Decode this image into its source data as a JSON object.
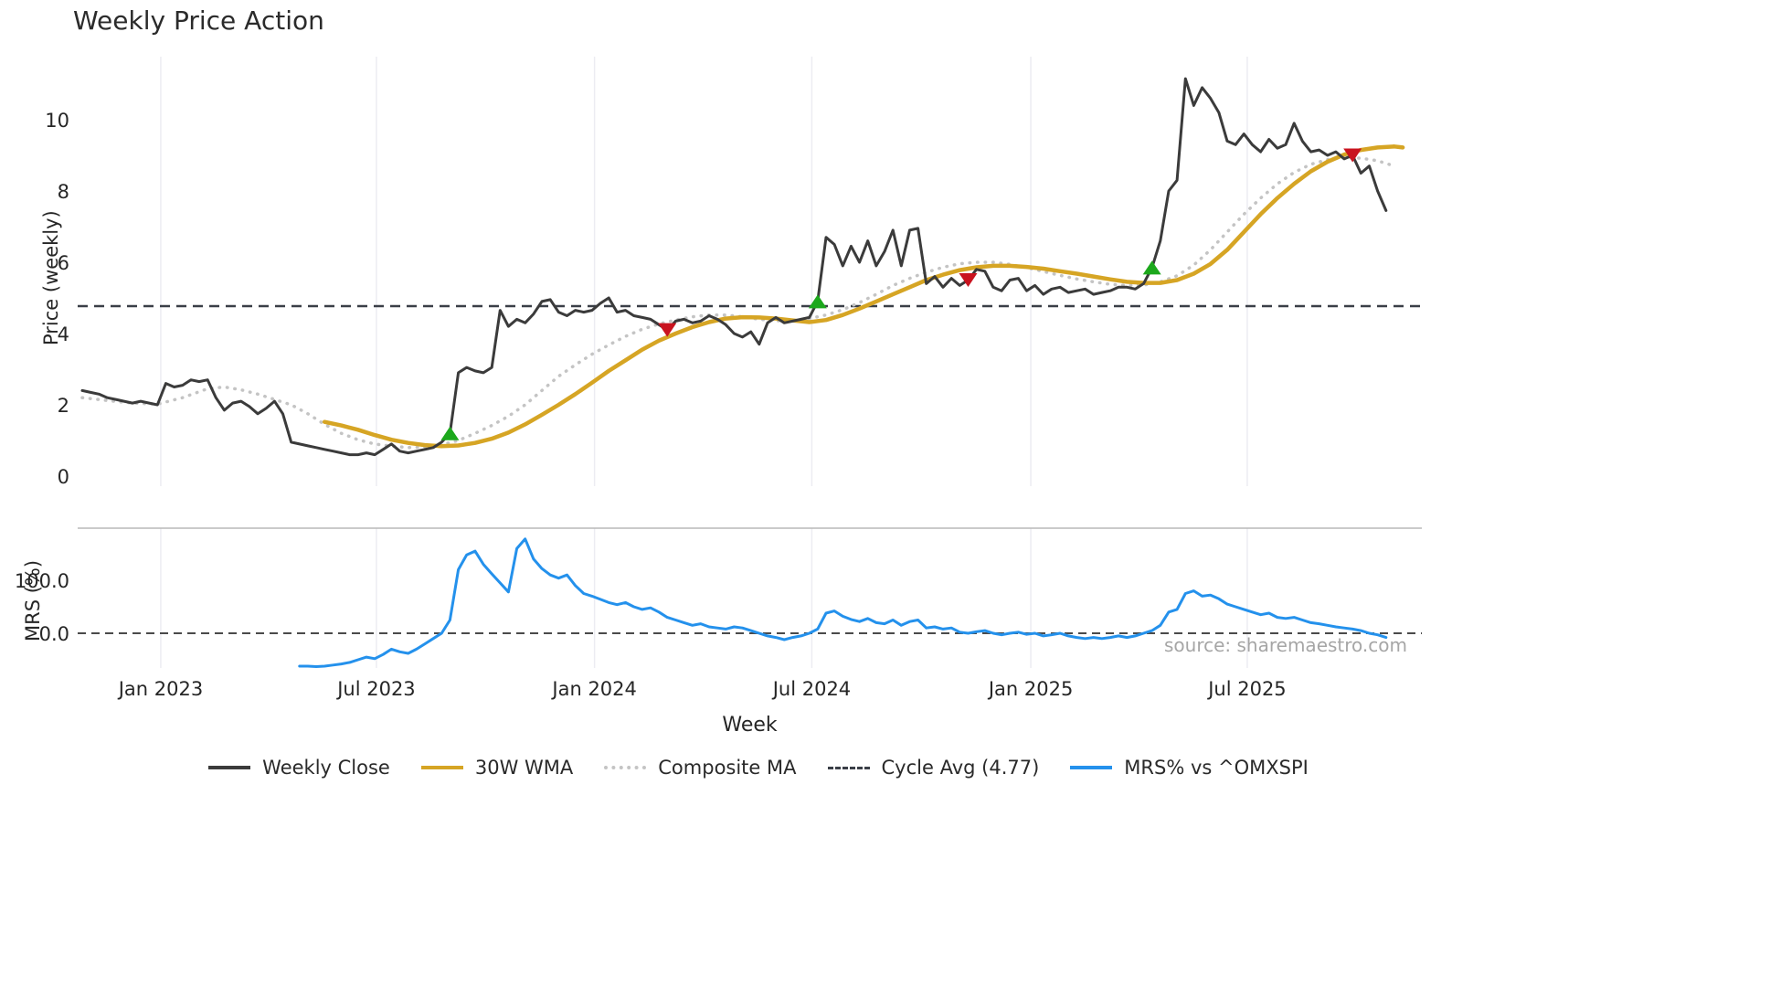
{
  "page": {
    "title": "Weekly Price Action",
    "source_note": "source: sharemaestro.com"
  },
  "chart_data": {
    "type": "line",
    "title": "Weekly Price Action",
    "xlabel": "Week",
    "x_domain_weeks": [
      0,
      160
    ],
    "grid": "vertical-light",
    "legend_position": "bottom-center",
    "price_panel": {
      "ylabel": "Price (weekly)",
      "ylim": [
        -0.3,
        11.8
      ]
    },
    "mrs_panel": {
      "ylabel": "MRS (%)",
      "ylim": [
        -75,
        200
      ]
    },
    "style": {
      "grid_color": "#ececf2",
      "tick_color": "#262626",
      "spine_color": "#b8b8b8",
      "background": "#ffffff"
    },
    "xticks": [
      {
        "week": 9.4,
        "label": "Jan 2023"
      },
      {
        "week": 35.2,
        "label": "Jul 2023"
      },
      {
        "week": 61.3,
        "label": "Jan 2024"
      },
      {
        "week": 87.3,
        "label": "Jul 2024"
      },
      {
        "week": 113.5,
        "label": "Jan 2025"
      },
      {
        "week": 139.4,
        "label": "Jul 2025"
      }
    ],
    "price_yticks": [
      {
        "value": 0,
        "label": "0"
      },
      {
        "value": 2,
        "label": "2"
      },
      {
        "value": 4,
        "label": "4"
      },
      {
        "value": 6,
        "label": "6"
      },
      {
        "value": 8,
        "label": "8"
      },
      {
        "value": 10,
        "label": "10"
      }
    ],
    "mrs_yticks": [
      {
        "value": 0,
        "label": "0.0"
      },
      {
        "value": 100,
        "label": "100.0"
      }
    ],
    "price_hline": {
      "label": "Cycle Avg (4.77)",
      "value": 4.77,
      "color": "#3a3f47",
      "dash": "11 7",
      "width": 2.5
    },
    "mrs_hline": {
      "label": "MRS zero line",
      "value": 0,
      "color": "#4a4a4a",
      "dash": "9 6",
      "width": 2
    },
    "series": [
      {
        "id": "weekly-close",
        "name": "Weekly Close",
        "panel": "price",
        "color": "#3b3b3b",
        "width": 3,
        "dash": "",
        "x0": 0,
        "step": 1,
        "values": [
          2.4,
          2.35,
          2.3,
          2.2,
          2.15,
          2.1,
          2.05,
          2.1,
          2.05,
          2.0,
          2.6,
          2.5,
          2.55,
          2.7,
          2.65,
          2.7,
          2.2,
          1.85,
          2.05,
          2.1,
          1.95,
          1.75,
          1.9,
          2.1,
          1.75,
          0.95,
          0.9,
          0.85,
          0.8,
          0.75,
          0.7,
          0.65,
          0.6,
          0.6,
          0.65,
          0.6,
          0.75,
          0.9,
          0.7,
          0.65,
          0.7,
          0.75,
          0.8,
          0.95,
          1.2,
          2.9,
          3.05,
          2.95,
          2.9,
          3.05,
          4.65,
          4.2,
          4.4,
          4.3,
          4.55,
          4.9,
          4.95,
          4.6,
          4.5,
          4.65,
          4.6,
          4.65,
          4.85,
          5.0,
          4.6,
          4.65,
          4.5,
          4.45,
          4.4,
          4.25,
          4.1,
          4.35,
          4.4,
          4.3,
          4.35,
          4.5,
          4.4,
          4.25,
          4.0,
          3.9,
          4.05,
          3.7,
          4.3,
          4.45,
          4.3,
          4.35,
          4.4,
          4.45,
          4.9,
          6.7,
          6.5,
          5.9,
          6.45,
          6.0,
          6.6,
          5.9,
          6.3,
          6.9,
          5.9,
          6.9,
          6.95,
          5.4,
          5.6,
          5.3,
          5.55,
          5.35,
          5.5,
          5.8,
          5.75,
          5.3,
          5.2,
          5.5,
          5.55,
          5.2,
          5.35,
          5.1,
          5.25,
          5.3,
          5.15,
          5.2,
          5.25,
          5.1,
          5.15,
          5.2,
          5.3,
          5.3,
          5.25,
          5.4,
          5.85,
          6.6,
          8.0,
          8.3,
          11.15,
          10.4,
          10.9,
          10.6,
          10.2,
          9.4,
          9.3,
          9.6,
          9.3,
          9.1,
          9.45,
          9.2,
          9.3,
          9.9,
          9.4,
          9.1,
          9.15,
          9.0,
          9.1,
          8.9,
          9.0,
          8.5,
          8.7,
          8.0,
          7.45
        ]
      },
      {
        "id": "wma-30w",
        "name": "30W WMA",
        "panel": "price",
        "color": "#d6a524",
        "width": 4.5,
        "dash": "",
        "points": [
          [
            29,
            1.52
          ],
          [
            31,
            1.42
          ],
          [
            33,
            1.3
          ],
          [
            35,
            1.15
          ],
          [
            37,
            1.02
          ],
          [
            39,
            0.93
          ],
          [
            41,
            0.87
          ],
          [
            43,
            0.84
          ],
          [
            45,
            0.86
          ],
          [
            47,
            0.93
          ],
          [
            49,
            1.05
          ],
          [
            51,
            1.22
          ],
          [
            53,
            1.45
          ],
          [
            55,
            1.72
          ],
          [
            57,
            2.0
          ],
          [
            59,
            2.3
          ],
          [
            61,
            2.62
          ],
          [
            63,
            2.95
          ],
          [
            65,
            3.25
          ],
          [
            67,
            3.55
          ],
          [
            69,
            3.8
          ],
          [
            71,
            4.0
          ],
          [
            73,
            4.18
          ],
          [
            75,
            4.32
          ],
          [
            77,
            4.42
          ],
          [
            79,
            4.46
          ],
          [
            81,
            4.45
          ],
          [
            83,
            4.42
          ],
          [
            85,
            4.37
          ],
          [
            87,
            4.32
          ],
          [
            89,
            4.38
          ],
          [
            91,
            4.52
          ],
          [
            93,
            4.7
          ],
          [
            95,
            4.9
          ],
          [
            97,
            5.1
          ],
          [
            99,
            5.3
          ],
          [
            101,
            5.5
          ],
          [
            103,
            5.65
          ],
          [
            105,
            5.78
          ],
          [
            107,
            5.86
          ],
          [
            109,
            5.9
          ],
          [
            111,
            5.9
          ],
          [
            113,
            5.87
          ],
          [
            115,
            5.82
          ],
          [
            117,
            5.75
          ],
          [
            119,
            5.68
          ],
          [
            121,
            5.6
          ],
          [
            123,
            5.52
          ],
          [
            125,
            5.45
          ],
          [
            127,
            5.42
          ],
          [
            129,
            5.42
          ],
          [
            131,
            5.5
          ],
          [
            133,
            5.68
          ],
          [
            135,
            5.95
          ],
          [
            137,
            6.35
          ],
          [
            139,
            6.85
          ],
          [
            141,
            7.35
          ],
          [
            143,
            7.8
          ],
          [
            145,
            8.2
          ],
          [
            147,
            8.55
          ],
          [
            149,
            8.82
          ],
          [
            151,
            9.02
          ],
          [
            153,
            9.15
          ],
          [
            155,
            9.22
          ],
          [
            157,
            9.25
          ],
          [
            158,
            9.22
          ]
        ]
      },
      {
        "id": "composite-ma",
        "name": "Composite MA",
        "panel": "price",
        "color": "#c4c4c4",
        "width": 3.5,
        "dash": "0.5 8",
        "points": [
          [
            0,
            2.2
          ],
          [
            3,
            2.12
          ],
          [
            6,
            2.05
          ],
          [
            9,
            2.02
          ],
          [
            12,
            2.2
          ],
          [
            15,
            2.45
          ],
          [
            17,
            2.5
          ],
          [
            19,
            2.42
          ],
          [
            21,
            2.3
          ],
          [
            23,
            2.15
          ],
          [
            25,
            2.0
          ],
          [
            27,
            1.75
          ],
          [
            29,
            1.45
          ],
          [
            31,
            1.2
          ],
          [
            33,
            1.02
          ],
          [
            35,
            0.9
          ],
          [
            37,
            0.84
          ],
          [
            39,
            0.8
          ],
          [
            41,
            0.82
          ],
          [
            43,
            0.88
          ],
          [
            45,
            1.0
          ],
          [
            47,
            1.2
          ],
          [
            49,
            1.42
          ],
          [
            51,
            1.68
          ],
          [
            53,
            2.0
          ],
          [
            55,
            2.4
          ],
          [
            57,
            2.8
          ],
          [
            59,
            3.12
          ],
          [
            61,
            3.42
          ],
          [
            63,
            3.68
          ],
          [
            65,
            3.92
          ],
          [
            67,
            4.12
          ],
          [
            69,
            4.27
          ],
          [
            71,
            4.38
          ],
          [
            73,
            4.47
          ],
          [
            75,
            4.52
          ],
          [
            77,
            4.52
          ],
          [
            79,
            4.47
          ],
          [
            81,
            4.4
          ],
          [
            83,
            4.36
          ],
          [
            85,
            4.36
          ],
          [
            87,
            4.42
          ],
          [
            89,
            4.52
          ],
          [
            91,
            4.67
          ],
          [
            93,
            4.87
          ],
          [
            95,
            5.1
          ],
          [
            97,
            5.35
          ],
          [
            99,
            5.55
          ],
          [
            101,
            5.72
          ],
          [
            103,
            5.86
          ],
          [
            105,
            5.96
          ],
          [
            107,
            6.0
          ],
          [
            109,
            6.0
          ],
          [
            111,
            5.94
          ],
          [
            113,
            5.85
          ],
          [
            115,
            5.74
          ],
          [
            117,
            5.63
          ],
          [
            119,
            5.53
          ],
          [
            121,
            5.45
          ],
          [
            123,
            5.38
          ],
          [
            125,
            5.35
          ],
          [
            127,
            5.36
          ],
          [
            129,
            5.45
          ],
          [
            131,
            5.62
          ],
          [
            133,
            5.92
          ],
          [
            135,
            6.35
          ],
          [
            137,
            6.85
          ],
          [
            139,
            7.35
          ],
          [
            141,
            7.8
          ],
          [
            143,
            8.2
          ],
          [
            145,
            8.52
          ],
          [
            147,
            8.75
          ],
          [
            149,
            8.88
          ],
          [
            151,
            8.94
          ],
          [
            153,
            8.92
          ],
          [
            155,
            8.85
          ],
          [
            157,
            8.7
          ]
        ]
      },
      {
        "id": "mrs",
        "name": "MRS% vs ^OMXSPI",
        "panel": "mrs",
        "color": "#2491ec",
        "width": 3,
        "dash": "",
        "x0": 26,
        "step": 1,
        "values": [
          -62,
          -62,
          -63,
          -62,
          -60,
          -58,
          -55,
          -50,
          -45,
          -48,
          -40,
          -30,
          -35,
          -38,
          -30,
          -20,
          -10,
          0,
          25,
          120,
          148,
          155,
          130,
          112,
          95,
          78,
          160,
          178,
          140,
          122,
          110,
          104,
          110,
          90,
          75,
          70,
          64,
          58,
          54,
          58,
          50,
          45,
          48,
          40,
          30,
          25,
          20,
          15,
          18,
          12,
          10,
          8,
          12,
          10,
          5,
          0,
          -5,
          -8,
          -12,
          -8,
          -5,
          0,
          8,
          38,
          42,
          32,
          26,
          22,
          28,
          20,
          18,
          25,
          15,
          22,
          25,
          10,
          12,
          8,
          10,
          2,
          0,
          3,
          5,
          0,
          -3,
          0,
          2,
          -2,
          0,
          -5,
          -3,
          0,
          -5,
          -8,
          -10,
          -8,
          -10,
          -8,
          -5,
          -8,
          -5,
          0,
          5,
          15,
          40,
          45,
          75,
          80,
          70,
          72,
          65,
          55,
          50,
          45,
          40,
          35,
          38,
          30,
          28,
          30,
          25,
          20,
          18,
          15,
          12,
          10,
          8,
          5,
          0,
          -3,
          -8
        ]
      }
    ],
    "markers": [
      {
        "type": "buy",
        "shape": "triangle-up",
        "color": "#1ca81c",
        "week": 44,
        "price": 1.2
      },
      {
        "type": "buy",
        "shape": "triangle-up",
        "color": "#1ca81c",
        "week": 88,
        "price": 4.9
      },
      {
        "type": "buy",
        "shape": "triangle-up",
        "color": "#1ca81c",
        "week": 128,
        "price": 5.85
      },
      {
        "type": "sell",
        "shape": "triangle-down",
        "color": "#c9131f",
        "week": 70,
        "price": 4.1
      },
      {
        "type": "sell",
        "shape": "triangle-down",
        "color": "#c9131f",
        "week": 106,
        "price": 5.5
      },
      {
        "type": "sell",
        "shape": "triangle-down",
        "color": "#c9131f",
        "week": 152,
        "price": 9.0
      }
    ],
    "legend": [
      {
        "label": "Weekly Close",
        "swatch": "solid",
        "color": "#3b3b3b"
      },
      {
        "label": "30W WMA",
        "swatch": "solid",
        "color": "#d6a524"
      },
      {
        "label": "Composite MA",
        "swatch": "dotted",
        "color": "#c4c4c4"
      },
      {
        "label": "Cycle Avg (4.77)",
        "swatch": "dashed",
        "color": "#3a3f47"
      },
      {
        "label": "MRS% vs ^OMXSPI",
        "swatch": "solid",
        "color": "#2491ec"
      }
    ]
  }
}
